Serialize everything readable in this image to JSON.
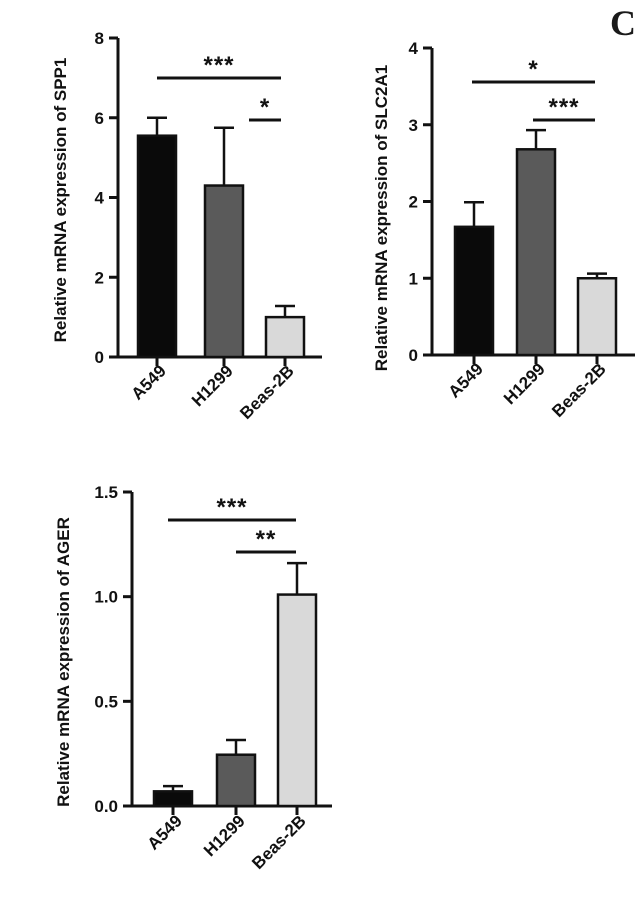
{
  "panel_letter": "C",
  "chart_data": [
    {
      "type": "bar",
      "categories": [
        "A549",
        "H1299",
        "Beas-2B"
      ],
      "values": [
        5.55,
        4.3,
        1.0
      ],
      "errors": [
        0.45,
        1.45,
        0.28
      ],
      "ylabel": "Relative mRNA expression of SPP1",
      "ylim": [
        0,
        8
      ],
      "yticks": [
        0,
        2,
        4,
        6,
        8
      ],
      "colors": [
        "#0a0a0a",
        "#5a5a5a",
        "#d9d9d9"
      ],
      "significance": [
        {
          "from": "A549",
          "to": "Beas-2B",
          "label": "***"
        },
        {
          "from": "H1299",
          "to": "Beas-2B",
          "label": "*"
        }
      ]
    },
    {
      "type": "bar",
      "categories": [
        "A549",
        "H1299",
        "Beas-2B"
      ],
      "values": [
        1.67,
        2.68,
        1.0
      ],
      "errors": [
        0.32,
        0.25,
        0.06
      ],
      "ylabel": "Relative mRNA expression of SLC2A1",
      "ylim": [
        0,
        4
      ],
      "yticks": [
        0,
        1,
        2,
        3,
        4
      ],
      "colors": [
        "#0a0a0a",
        "#5a5a5a",
        "#d9d9d9"
      ],
      "significance": [
        {
          "from": "A549",
          "to": "Beas-2B",
          "label": "*"
        },
        {
          "from": "H1299",
          "to": "Beas-2B",
          "label": "***"
        }
      ]
    },
    {
      "type": "bar",
      "categories": [
        "A549",
        "H1299",
        "Beas-2B"
      ],
      "values": [
        0.07,
        0.245,
        1.01
      ],
      "errors": [
        0.025,
        0.07,
        0.15
      ],
      "ylabel": "Relative mRNA expression of AGER",
      "ylim": [
        0,
        1.5
      ],
      "yticks": [
        "0.0",
        "0.5",
        "1.0",
        "1.5"
      ],
      "colors": [
        "#0a0a0a",
        "#5a5a5a",
        "#d9d9d9"
      ],
      "significance": [
        {
          "from": "A549",
          "to": "Beas-2B",
          "label": "***"
        },
        {
          "from": "H1299",
          "to": "Beas-2B",
          "label": "**"
        }
      ]
    }
  ]
}
